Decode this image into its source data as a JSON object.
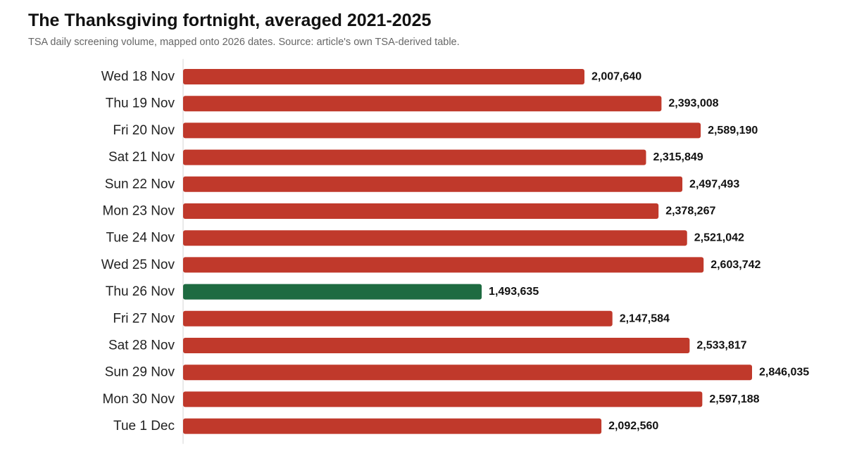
{
  "chart_data": {
    "type": "bar",
    "orientation": "horizontal",
    "title": "The Thanksgiving fortnight, averaged 2021-2025",
    "subtitle": "TSA daily screening volume, mapped onto 2026 dates. Source: article's own TSA-derived table.",
    "categories": [
      "Wed 18 Nov",
      "Thu 19 Nov",
      "Fri 20 Nov",
      "Sat 21 Nov",
      "Sun 22 Nov",
      "Mon 23 Nov",
      "Tue 24 Nov",
      "Wed 25 Nov",
      "Thu 26 Nov",
      "Fri 27 Nov",
      "Sat 28 Nov",
      "Sun 29 Nov",
      "Mon 30 Nov",
      "Tue 1 Dec"
    ],
    "values": [
      2007640,
      2393008,
      2589190,
      2315849,
      2497493,
      2378267,
      2521042,
      2603742,
      1493635,
      2147584,
      2533817,
      2846035,
      2597188,
      2092560
    ],
    "value_labels": [
      "2,007,640",
      "2,393,008",
      "2,589,190",
      "2,315,849",
      "2,497,493",
      "2,378,267",
      "2,521,042",
      "2,603,742",
      "1,493,635",
      "2,147,584",
      "2,533,817",
      "2,846,035",
      "2,597,188",
      "2,092,560"
    ],
    "highlight_category": "Thu 26 Nov",
    "colors": {
      "default_bar": "#c0392b",
      "highlight_bar": "#1e6b41",
      "axis_line": "#e4e4e4"
    },
    "xlim": [
      0,
      2846035
    ],
    "grid": false,
    "legend": "none"
  }
}
